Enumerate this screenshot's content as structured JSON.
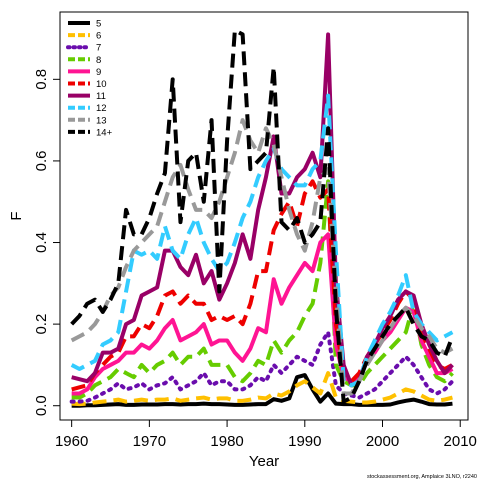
{
  "chart_data": {
    "type": "line",
    "xlabel": "Year",
    "ylabel": "F",
    "xlim": [
      1958.5,
      2011
    ],
    "ylim": [
      -0.035,
      0.965
    ],
    "xticks": [
      1960,
      1970,
      1980,
      1990,
      2000,
      2010
    ],
    "yticks": [
      0.0,
      0.2,
      0.4,
      0.6,
      0.8
    ],
    "ytick_labels": [
      "0.0",
      "0.2",
      "0.4",
      "0.6",
      "0.8"
    ],
    "grid": false,
    "legend_position": "top-left",
    "footnote": "stockassessment.org, Amplaice 3LNO, r2240",
    "x": [
      1960,
      1961,
      1962,
      1963,
      1964,
      1965,
      1966,
      1967,
      1968,
      1969,
      1970,
      1971,
      1972,
      1973,
      1974,
      1975,
      1976,
      1977,
      1978,
      1979,
      1980,
      1981,
      1982,
      1983,
      1984,
      1985,
      1986,
      1987,
      1988,
      1989,
      1990,
      1991,
      1992,
      1993,
      1994,
      1995,
      1996,
      1997,
      1998,
      1999,
      2000,
      2001,
      2002,
      2003,
      2004,
      2005,
      2006,
      2007,
      2008,
      2009
    ],
    "series": [
      {
        "name": "5",
        "color": "#000000",
        "dash": "solid",
        "values": [
          0.0,
          0.0,
          0.001,
          0.001,
          0.002,
          0.003,
          0.004,
          0.002,
          0.002,
          0.003,
          0.003,
          0.003,
          0.004,
          0.004,
          0.003,
          0.004,
          0.004,
          0.005,
          0.004,
          0.004,
          0.003,
          0.002,
          0.002,
          0.003,
          0.004,
          0.004,
          0.016,
          0.012,
          0.018,
          0.07,
          0.075,
          0.04,
          0.01,
          0.03,
          0.005,
          0.004,
          0.004,
          0.002,
          0.002,
          0.002,
          0.002,
          0.003,
          0.008,
          0.012,
          0.015,
          0.01,
          0.004,
          0.003,
          0.003,
          0.005
        ]
      },
      {
        "name": "6",
        "color": "#FFC000",
        "dash": "dash",
        "values": [
          0.005,
          0.004,
          0.005,
          0.008,
          0.01,
          0.012,
          0.015,
          0.01,
          0.012,
          0.015,
          0.012,
          0.015,
          0.015,
          0.018,
          0.012,
          0.015,
          0.018,
          0.02,
          0.015,
          0.018,
          0.018,
          0.012,
          0.012,
          0.015,
          0.02,
          0.018,
          0.03,
          0.025,
          0.035,
          0.05,
          0.06,
          0.045,
          0.03,
          0.08,
          0.02,
          0.012,
          0.01,
          0.008,
          0.008,
          0.01,
          0.015,
          0.02,
          0.03,
          0.04,
          0.035,
          0.025,
          0.015,
          0.012,
          0.015,
          0.02
        ]
      },
      {
        "name": "7",
        "color": "#6A0DAD",
        "dash": "dot",
        "values": [
          0.01,
          0.01,
          0.012,
          0.02,
          0.03,
          0.04,
          0.055,
          0.04,
          0.045,
          0.055,
          0.04,
          0.05,
          0.055,
          0.07,
          0.04,
          0.05,
          0.06,
          0.08,
          0.05,
          0.06,
          0.06,
          0.04,
          0.04,
          0.05,
          0.07,
          0.06,
          0.1,
          0.08,
          0.1,
          0.12,
          0.11,
          0.1,
          0.15,
          0.18,
          0.05,
          0.03,
          0.025,
          0.02,
          0.03,
          0.04,
          0.06,
          0.08,
          0.1,
          0.12,
          0.1,
          0.07,
          0.04,
          0.03,
          0.04,
          0.06
        ]
      },
      {
        "name": "8",
        "color": "#66CC00",
        "dash": "dash",
        "values": [
          0.02,
          0.02,
          0.03,
          0.05,
          0.06,
          0.07,
          0.09,
          0.08,
          0.07,
          0.1,
          0.08,
          0.1,
          0.11,
          0.13,
          0.1,
          0.12,
          0.12,
          0.14,
          0.1,
          0.1,
          0.1,
          0.07,
          0.06,
          0.08,
          0.11,
          0.1,
          0.16,
          0.13,
          0.16,
          0.18,
          0.22,
          0.25,
          0.35,
          0.55,
          0.1,
          0.06,
          0.05,
          0.05,
          0.08,
          0.1,
          0.12,
          0.14,
          0.16,
          0.18,
          0.25,
          0.15,
          0.1,
          0.07,
          0.06,
          0.08
        ]
      },
      {
        "name": "9",
        "color": "#FF1493",
        "dash": "solid",
        "values": [
          0.03,
          0.03,
          0.04,
          0.07,
          0.09,
          0.1,
          0.11,
          0.13,
          0.13,
          0.15,
          0.14,
          0.16,
          0.19,
          0.21,
          0.16,
          0.17,
          0.18,
          0.2,
          0.15,
          0.16,
          0.16,
          0.13,
          0.11,
          0.14,
          0.19,
          0.18,
          0.31,
          0.25,
          0.29,
          0.32,
          0.35,
          0.33,
          0.4,
          0.42,
          0.15,
          0.07,
          0.06,
          0.07,
          0.11,
          0.13,
          0.16,
          0.18,
          0.21,
          0.24,
          0.23,
          0.16,
          0.12,
          0.08,
          0.08,
          0.09
        ]
      },
      {
        "name": "10",
        "color": "#EE0000",
        "dash": "dash",
        "values": [
          0.04,
          0.045,
          0.05,
          0.08,
          0.1,
          0.12,
          0.13,
          0.17,
          0.17,
          0.2,
          0.19,
          0.22,
          0.27,
          0.28,
          0.25,
          0.27,
          0.25,
          0.25,
          0.21,
          0.22,
          0.21,
          0.22,
          0.2,
          0.25,
          0.33,
          0.33,
          0.43,
          0.47,
          0.5,
          0.44,
          0.52,
          0.55,
          0.51,
          0.53,
          0.2,
          0.08,
          0.06,
          0.08,
          0.12,
          0.15,
          0.18,
          0.21,
          0.25,
          0.28,
          0.26,
          0.18,
          0.14,
          0.1,
          0.09,
          0.1
        ]
      },
      {
        "name": "11",
        "color": "#990066",
        "dash": "solid",
        "values": [
          0.07,
          0.065,
          0.06,
          0.08,
          0.13,
          0.13,
          0.14,
          0.2,
          0.21,
          0.27,
          0.28,
          0.29,
          0.38,
          0.38,
          0.34,
          0.32,
          0.37,
          0.3,
          0.33,
          0.26,
          0.3,
          0.35,
          0.42,
          0.36,
          0.48,
          0.56,
          0.66,
          0.52,
          0.52,
          0.56,
          0.58,
          0.62,
          0.56,
          0.91,
          0.3,
          0.1,
          0.05,
          0.06,
          0.12,
          0.15,
          0.19,
          0.22,
          0.26,
          0.28,
          0.27,
          0.2,
          0.15,
          0.11,
          0.08,
          0.1
        ]
      },
      {
        "name": "12",
        "color": "#33CCFF",
        "dash": "dash",
        "values": [
          0.1,
          0.09,
          0.1,
          0.11,
          0.15,
          0.16,
          0.18,
          0.28,
          0.38,
          0.37,
          0.38,
          0.36,
          0.44,
          0.38,
          0.36,
          0.42,
          0.46,
          0.4,
          0.36,
          0.33,
          0.35,
          0.4,
          0.46,
          0.5,
          0.56,
          0.6,
          0.63,
          0.58,
          0.56,
          0.54,
          0.54,
          0.58,
          0.6,
          0.76,
          0.38,
          0.06,
          0.05,
          0.06,
          0.12,
          0.16,
          0.2,
          0.23,
          0.27,
          0.32,
          0.23,
          0.2,
          0.18,
          0.16,
          0.17,
          0.18
        ]
      },
      {
        "name": "13",
        "color": "#999999",
        "dash": "dash",
        "values": [
          0.16,
          0.17,
          0.18,
          0.2,
          0.23,
          0.27,
          0.29,
          0.34,
          0.38,
          0.4,
          0.42,
          0.44,
          0.5,
          0.56,
          0.59,
          0.53,
          0.48,
          0.48,
          0.46,
          0.5,
          0.56,
          0.62,
          0.7,
          0.65,
          0.62,
          0.68,
          0.64,
          0.56,
          0.48,
          0.42,
          0.38,
          0.45,
          0.56,
          0.58,
          0.28,
          0.03,
          0.03,
          0.06,
          0.1,
          0.13,
          0.16,
          0.19,
          0.22,
          0.24,
          0.22,
          0.19,
          0.17,
          0.14,
          0.13,
          0.14
        ]
      },
      {
        "name": "14+",
        "color": "#000000",
        "dash": "dash",
        "values": [
          0.2,
          0.22,
          0.25,
          0.26,
          0.23,
          0.26,
          0.3,
          0.48,
          0.42,
          0.42,
          0.46,
          0.52,
          0.57,
          0.8,
          0.45,
          0.6,
          0.62,
          0.5,
          0.7,
          0.28,
          0.65,
          0.92,
          0.91,
          0.58,
          0.6,
          0.62,
          0.83,
          0.45,
          0.43,
          0.46,
          0.4,
          0.42,
          0.45,
          0.68,
          0.24,
          0.01,
          0.02,
          0.06,
          0.11,
          0.14,
          0.17,
          0.2,
          0.22,
          0.24,
          0.2,
          0.17,
          0.16,
          0.13,
          0.12,
          0.17
        ]
      }
    ]
  }
}
